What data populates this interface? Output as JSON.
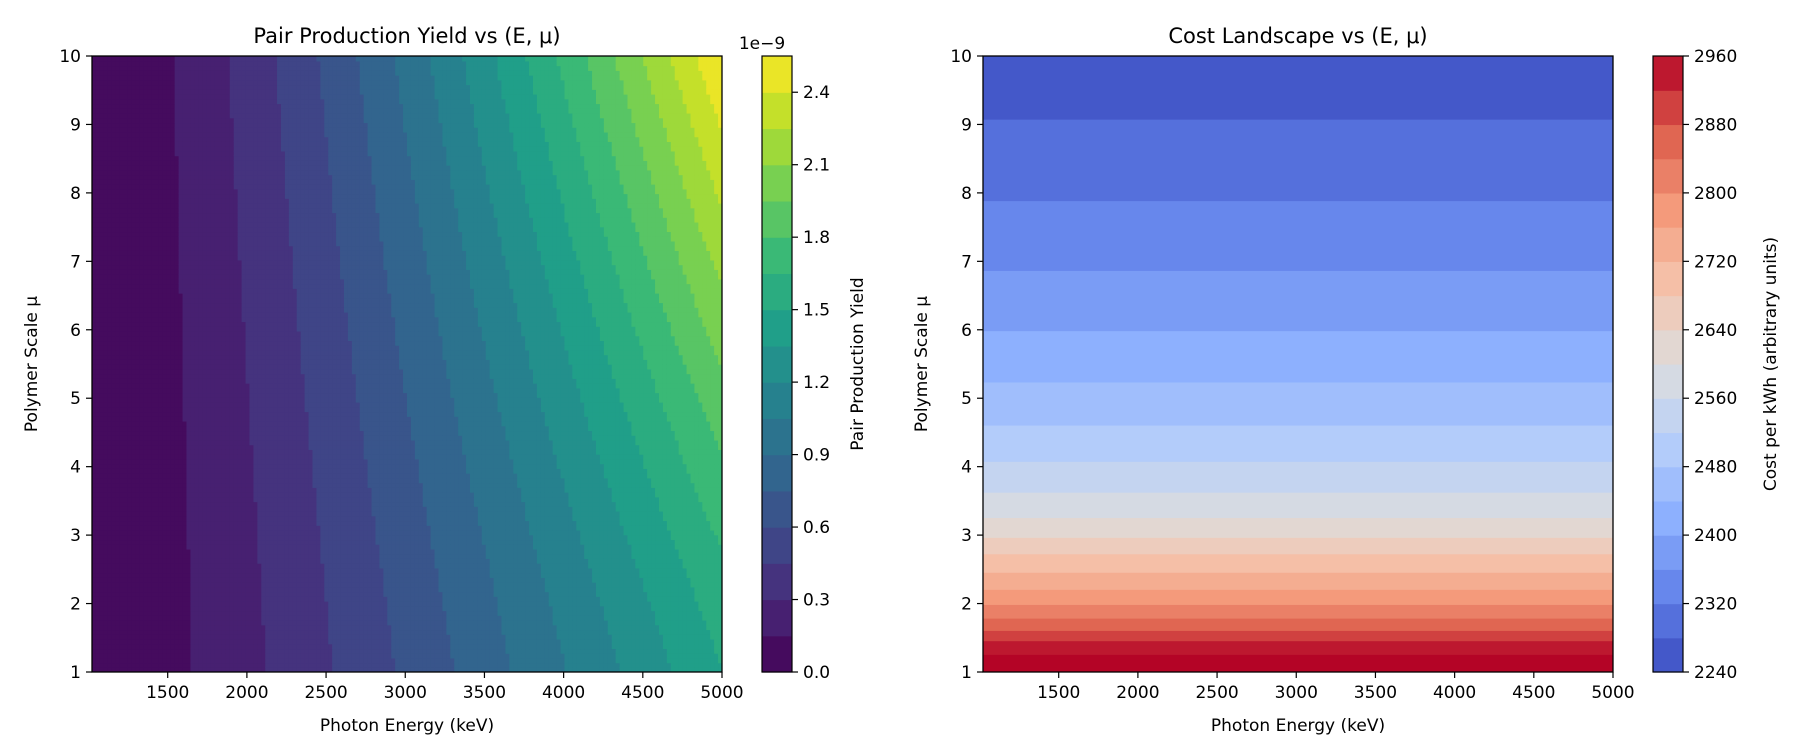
{
  "chart_data": [
    {
      "type": "contourf",
      "title": "Pair Production Yield vs (E, μ)",
      "xlabel": "Photon Energy (keV)",
      "ylabel": "Polymer Scale μ",
      "xlim": [
        1022,
        5000
      ],
      "ylim": [
        1,
        10
      ],
      "xticks": [
        "1500",
        "2000",
        "2500",
        "3000",
        "3500",
        "4000",
        "4500",
        "5000"
      ],
      "yticks": [
        "1",
        "2",
        "3",
        "4",
        "5",
        "6",
        "7",
        "8",
        "9",
        "10"
      ],
      "colormap": "viridis",
      "levels": [
        0.0,
        0.15,
        0.3,
        0.45,
        0.6,
        0.75,
        0.9,
        1.05,
        1.2,
        1.35,
        1.5,
        1.65,
        1.8,
        1.95,
        2.1,
        2.25,
        2.4,
        2.55
      ],
      "level_scale": "1e−9",
      "colorbar_label": "Pair Production Yield",
      "colorbar_ticks": [
        "0.0",
        "0.3",
        "0.6",
        "0.9",
        "1.2",
        "1.5",
        "1.8",
        "2.1",
        "2.4"
      ],
      "colorbar_tick_values": [
        0.0,
        0.3,
        0.6,
        0.9,
        1.2,
        1.5,
        1.8,
        2.1,
        2.4
      ],
      "samples": [
        {
          "E": 1022,
          "mu": 1,
          "yield": 0.0
        },
        {
          "E": 1500,
          "mu": 1,
          "yield": 0.13
        },
        {
          "E": 2500,
          "mu": 1,
          "yield": 0.58
        },
        {
          "E": 5000,
          "mu": 1,
          "yield": 1.5
        },
        {
          "E": 2500,
          "mu": 5,
          "yield": 0.68
        },
        {
          "E": 5000,
          "mu": 5,
          "yield": 2.0
        },
        {
          "E": 2500,
          "mu": 10,
          "yield": 0.84
        },
        {
          "E": 5000,
          "mu": 10,
          "yield": 2.5
        }
      ],
      "max_value": 2.5
    },
    {
      "type": "contourf",
      "title": "Cost Landscape vs (E, μ)",
      "xlabel": "Photon Energy (keV)",
      "ylabel": "Polymer Scale μ",
      "xlim": [
        1022,
        5000
      ],
      "ylim": [
        1,
        10
      ],
      "xticks": [
        "1500",
        "2000",
        "2500",
        "3000",
        "3500",
        "4000",
        "4500",
        "5000"
      ],
      "yticks": [
        "1",
        "2",
        "3",
        "4",
        "5",
        "6",
        "7",
        "8",
        "9",
        "10"
      ],
      "colormap": "coolwarm",
      "levels": [
        2240,
        2280,
        2320,
        2360,
        2400,
        2440,
        2480,
        2520,
        2560,
        2600,
        2640,
        2680,
        2720,
        2760,
        2800,
        2840,
        2880,
        2920,
        2960
      ],
      "colorbar_label": "Cost per kWh (arbitrary units)",
      "colorbar_ticks": [
        "2240",
        "2320",
        "2400",
        "2480",
        "2560",
        "2640",
        "2720",
        "2800",
        "2880",
        "2960"
      ],
      "colorbar_tick_values": [
        2240,
        2320,
        2400,
        2480,
        2560,
        2640,
        2720,
        2800,
        2880,
        2960
      ],
      "band_boundaries_mu": [
        9.07,
        7.88,
        6.86,
        5.98,
        5.23,
        4.6,
        4.07,
        3.62,
        3.25,
        2.96,
        2.72,
        2.45,
        2.2,
        1.98,
        1.78,
        1.6,
        1.45,
        1.25
      ],
      "max_value": 2960,
      "min_value": 2240
    }
  ]
}
